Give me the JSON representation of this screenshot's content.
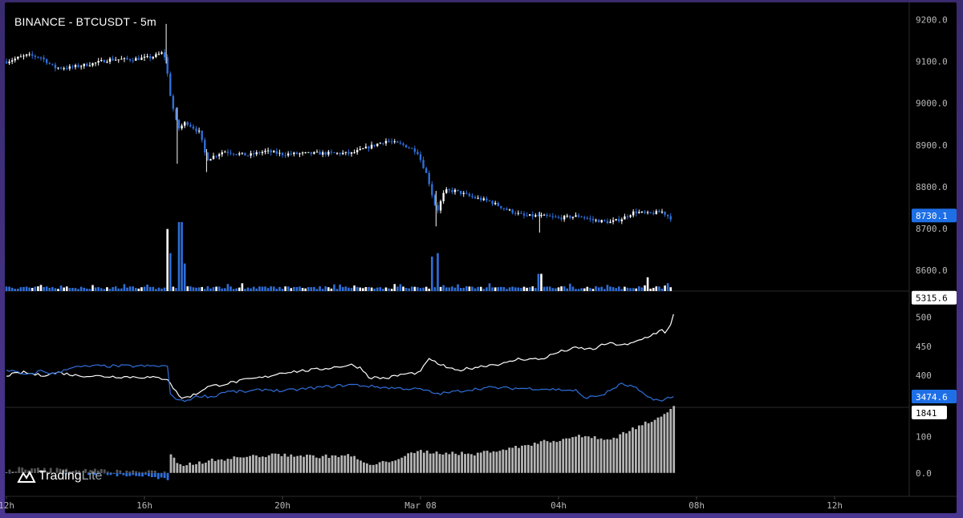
{
  "title": "BINANCE - BTCUSDT - 5m",
  "logo": {
    "brand": "Trading",
    "suffix": "Lite",
    "icon": "tradinglite-logo-icon"
  },
  "colors": {
    "bg": "#000000",
    "blue": "#2f6ed8",
    "white": "#ffffff",
    "gray": "#b4b4b4",
    "grid": "#1a1a1a",
    "axis_text": "#b8b8b8",
    "badge_blue": "#1e6fe6"
  },
  "x_axis": {
    "ticks": [
      "12h",
      "16h",
      "20h",
      "Mar 08",
      "04h",
      "08h",
      "12h"
    ]
  },
  "chart_data": [
    {
      "type": "candlestick",
      "name": "price",
      "title": "BINANCE - BTCUSDT - 5m",
      "y_ticks": [
        "9200.0",
        "9100.0",
        "9000.0",
        "8900.0",
        "8800.0",
        "8700.0",
        "8600.0"
      ],
      "ylim": [
        8550,
        9230
      ],
      "last_price": "8730.1",
      "trend": [
        [
          12.0,
          9100
        ],
        [
          12.6,
          9115
        ],
        [
          13.0,
          9110
        ],
        [
          13.4,
          9085
        ],
        [
          13.8,
          9085
        ],
        [
          14.5,
          9095
        ],
        [
          15.0,
          9105
        ],
        [
          15.6,
          9105
        ],
        [
          16.2,
          9110
        ],
        [
          16.5,
          9120
        ],
        [
          16.6,
          9110
        ],
        [
          16.75,
          9020
        ],
        [
          16.9,
          8960
        ],
        [
          17.0,
          8940
        ],
        [
          17.2,
          8955
        ],
        [
          17.6,
          8930
        ],
        [
          17.8,
          8865
        ],
        [
          18.3,
          8885
        ],
        [
          19.0,
          8875
        ],
        [
          19.5,
          8885
        ],
        [
          20.0,
          8878
        ],
        [
          21.0,
          8880
        ],
        [
          22.0,
          8880
        ],
        [
          22.5,
          8895
        ],
        [
          23.0,
          8910
        ],
        [
          23.5,
          8900
        ],
        [
          23.9,
          8885
        ],
        [
          24.2,
          8825
        ],
        [
          24.4,
          8760
        ],
        [
          24.5,
          8745
        ],
        [
          24.7,
          8790
        ],
        [
          25.0,
          8790
        ],
        [
          25.5,
          8775
        ],
        [
          26.0,
          8765
        ],
        [
          26.5,
          8745
        ],
        [
          27.0,
          8730
        ],
        [
          27.5,
          8730
        ],
        [
          28.0,
          8725
        ],
        [
          28.6,
          8730
        ],
        [
          29.0,
          8720
        ],
        [
          29.5,
          8715
        ],
        [
          29.8,
          8722
        ],
        [
          30.2,
          8740
        ],
        [
          30.6,
          8735
        ],
        [
          31.0,
          8740
        ],
        [
          31.3,
          8722
        ]
      ],
      "volume_spikes": [
        [
          16.65,
          0.9
        ],
        [
          16.78,
          0.55
        ],
        [
          17.05,
          1.0
        ],
        [
          17.2,
          0.4
        ],
        [
          24.35,
          0.5
        ],
        [
          24.5,
          0.55
        ],
        [
          27.45,
          0.25
        ],
        [
          30.6,
          0.2
        ]
      ]
    },
    {
      "type": "line",
      "name": "oscillator",
      "y_ticks": [
        "500",
        "450",
        "400"
      ],
      "ylim": [
        345,
        545
      ],
      "badges": {
        "white": "5315.6",
        "blue": "3474.6"
      },
      "series": [
        {
          "color": "white",
          "points": [
            [
              12.0,
              400
            ],
            [
              12.5,
              405
            ],
            [
              13.0,
              400
            ],
            [
              13.5,
              405
            ],
            [
              14.0,
              400
            ],
            [
              15.0,
              398
            ],
            [
              16.0,
              397
            ],
            [
              16.7,
              394
            ],
            [
              16.85,
              376
            ],
            [
              17.1,
              360
            ],
            [
              17.5,
              368
            ],
            [
              17.8,
              380
            ],
            [
              18.3,
              385
            ],
            [
              19.0,
              393
            ],
            [
              19.5,
              397
            ],
            [
              20.0,
              405
            ],
            [
              21.0,
              410
            ],
            [
              22.0,
              418
            ],
            [
              22.3,
              412
            ],
            [
              22.5,
              397
            ],
            [
              23.0,
              395
            ],
            [
              23.5,
              402
            ],
            [
              24.0,
              405
            ],
            [
              24.2,
              428
            ],
            [
              24.6,
              418
            ],
            [
              25.0,
              408
            ],
            [
              26.0,
              418
            ],
            [
              26.5,
              421
            ],
            [
              26.8,
              428
            ],
            [
              27.5,
              428
            ],
            [
              28.0,
              440
            ],
            [
              28.5,
              447
            ],
            [
              29.0,
              445
            ],
            [
              29.4,
              455
            ],
            [
              30.0,
              452
            ],
            [
              30.6,
              467
            ],
            [
              31.0,
              478
            ],
            [
              31.1,
              470
            ],
            [
              31.3,
              495
            ],
            [
              31.35,
              510
            ]
          ]
        },
        {
          "color": "blue",
          "points": [
            [
              12.0,
              410
            ],
            [
              12.3,
              405
            ],
            [
              12.6,
              400
            ],
            [
              13.0,
              408
            ],
            [
              13.4,
              402
            ],
            [
              13.8,
              413
            ],
            [
              14.5,
              416
            ],
            [
              15.0,
              416
            ],
            [
              16.0,
              416
            ],
            [
              16.7,
              416
            ],
            [
              16.75,
              366
            ],
            [
              17.1,
              355
            ],
            [
              17.6,
              365
            ],
            [
              18.0,
              363
            ],
            [
              18.3,
              372
            ],
            [
              19.0,
              372
            ],
            [
              19.5,
              376
            ],
            [
              20.0,
              373
            ],
            [
              21.0,
              379
            ],
            [
              22.0,
              384
            ],
            [
              23.0,
              379
            ],
            [
              24.0,
              376
            ],
            [
              24.5,
              368
            ],
            [
              25.0,
              372
            ],
            [
              25.5,
              376
            ],
            [
              26.0,
              379
            ],
            [
              26.5,
              378
            ],
            [
              27.5,
              377
            ],
            [
              28.5,
              374
            ],
            [
              28.7,
              362
            ],
            [
              29.0,
              363
            ],
            [
              29.3,
              367
            ],
            [
              29.8,
              385
            ],
            [
              30.2,
              380
            ],
            [
              30.5,
              365
            ],
            [
              30.8,
              359
            ],
            [
              31.0,
              355
            ],
            [
              31.2,
              362
            ],
            [
              31.35,
              363
            ]
          ]
        }
      ]
    },
    {
      "type": "bar",
      "name": "histogram",
      "y_ticks": [
        "100",
        "0.0"
      ],
      "ylim": [
        -60,
        180
      ],
      "last_value": "1841",
      "profile": [
        [
          12.0,
          0,
          12
        ],
        [
          12.4,
          0,
          18
        ],
        [
          13.0,
          5,
          15
        ],
        [
          13.6,
          0,
          15
        ],
        [
          14.3,
          0,
          15
        ],
        [
          15.0,
          -5,
          10
        ],
        [
          16.0,
          -8,
          8
        ],
        [
          16.7,
          -20,
          5
        ],
        [
          16.75,
          50,
          0
        ],
        [
          17.0,
          20,
          0
        ],
        [
          18.0,
          35,
          0
        ],
        [
          19.0,
          45,
          0
        ],
        [
          20.0,
          50,
          0
        ],
        [
          21.0,
          45,
          0
        ],
        [
          22.0,
          48,
          0
        ],
        [
          22.5,
          20,
          0
        ],
        [
          23.0,
          30,
          0
        ],
        [
          23.5,
          45,
          0
        ],
        [
          24.0,
          60,
          0
        ],
        [
          24.5,
          55,
          0
        ],
        [
          25.0,
          55,
          0
        ],
        [
          25.5,
          50,
          0
        ],
        [
          26.0,
          60,
          0
        ],
        [
          26.5,
          65,
          0
        ],
        [
          27.0,
          75,
          0
        ],
        [
          27.5,
          85,
          0
        ],
        [
          28.0,
          90,
          0
        ],
        [
          28.5,
          100,
          0
        ],
        [
          29.0,
          100,
          0
        ],
        [
          29.5,
          90,
          0
        ],
        [
          30.0,
          115,
          0
        ],
        [
          30.5,
          135,
          0
        ],
        [
          31.0,
          160,
          0
        ],
        [
          31.35,
          180,
          0
        ]
      ]
    }
  ]
}
